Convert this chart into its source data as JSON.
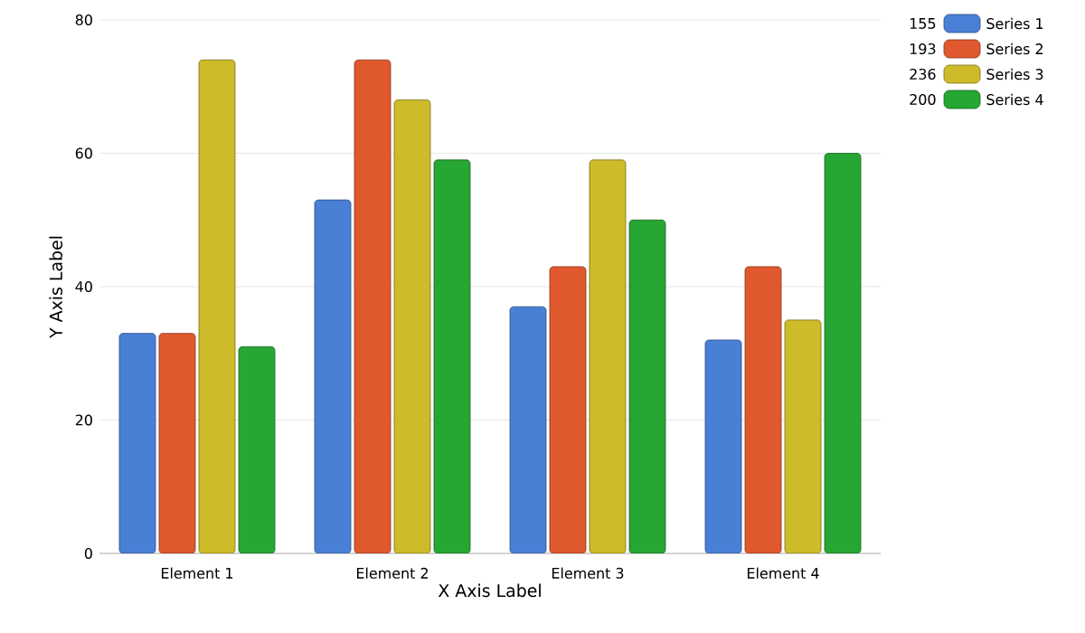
{
  "chart_data": {
    "type": "bar",
    "xlabel": "X Axis Label",
    "ylabel": "Y Axis Label",
    "categories": [
      "Element 1",
      "Element 2",
      "Element 3",
      "Element 4"
    ],
    "series": [
      {
        "name": "Series 1",
        "color": "#4a7fd6",
        "values": [
          33,
          53,
          37,
          32
        ]
      },
      {
        "name": "Series 2",
        "color": "#e0582e",
        "values": [
          33,
          74,
          43,
          43
        ]
      },
      {
        "name": "Series 3",
        "color": "#cdbb2a",
        "values": [
          74,
          68,
          59,
          35
        ]
      },
      {
        "name": "Series 4",
        "color": "#26a632",
        "values": [
          31,
          59,
          50,
          60
        ]
      }
    ],
    "annotations": [
      "155",
      "193",
      "236",
      "200"
    ],
    "ylim": [
      0,
      80
    ],
    "yticks": [
      0,
      20,
      40,
      60,
      80
    ],
    "grid": "y",
    "legend": "top right"
  }
}
